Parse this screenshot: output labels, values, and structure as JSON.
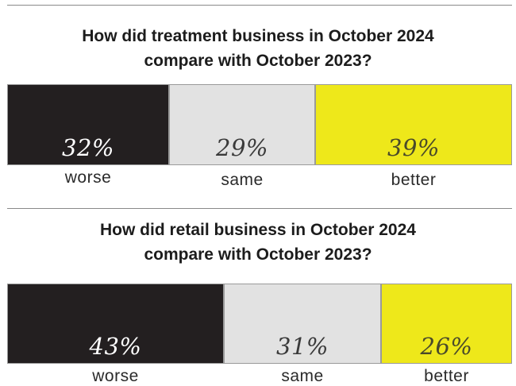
{
  "chart_data": [
    {
      "type": "bar",
      "stacked": true,
      "orientation": "horizontal",
      "title": "How did treatment business in October 2024 compare with October 2023?",
      "title_lines": [
        "How did treatment business in October 2024",
        "compare with October 2023?"
      ],
      "categories": [
        "worse",
        "same",
        "better"
      ],
      "values": [
        32,
        29,
        39
      ],
      "value_labels": [
        "32%",
        "29%",
        "39%"
      ],
      "colors": [
        "#231f20",
        "#e2e2e2",
        "#eee81a"
      ],
      "text_colors": [
        "#ffffff",
        "#3a3a3a",
        "#4a4a2a"
      ]
    },
    {
      "type": "bar",
      "stacked": true,
      "orientation": "horizontal",
      "title": "How did retail business in October 2024 compare with October 2023?",
      "title_lines": [
        "How did retail business in October 2024",
        "compare with October 2023?"
      ],
      "categories": [
        "worse",
        "same",
        "better"
      ],
      "values": [
        43,
        31,
        26
      ],
      "value_labels": [
        "43%",
        "31%",
        "26%"
      ],
      "colors": [
        "#231f20",
        "#e2e2e2",
        "#eee81a"
      ],
      "text_colors": [
        "#ffffff",
        "#3a3a3a",
        "#4a4a2a"
      ]
    }
  ]
}
